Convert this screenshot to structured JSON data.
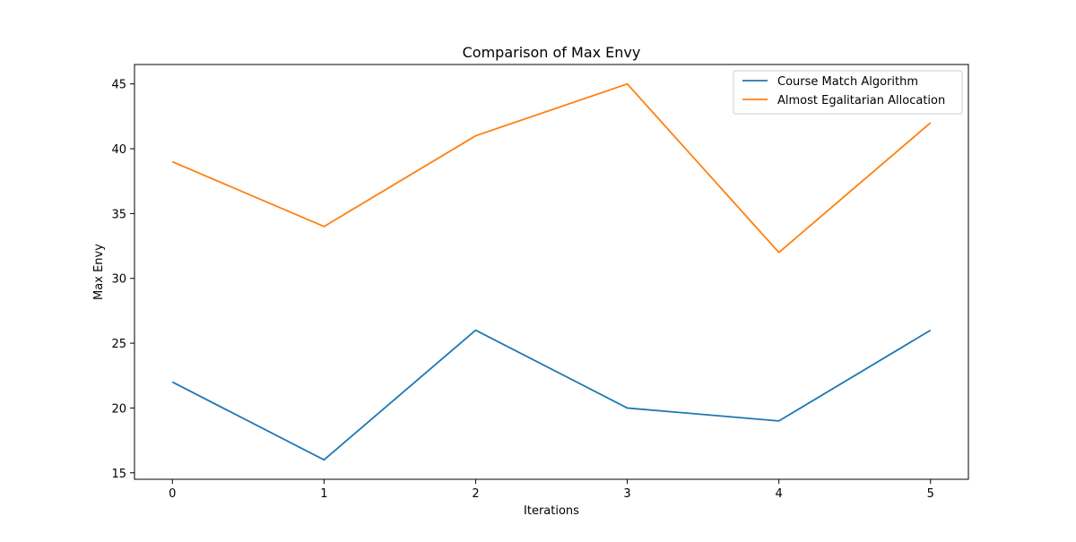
{
  "chart_data": {
    "type": "line",
    "title": "Comparison of Max Envy",
    "xlabel": "Iterations",
    "ylabel": "Max Envy",
    "x": [
      0,
      1,
      2,
      3,
      4,
      5
    ],
    "xlim": [
      -0.25,
      5.25
    ],
    "ylim": [
      14.5,
      46.5
    ],
    "xticks": [
      0,
      1,
      2,
      3,
      4,
      5
    ],
    "yticks": [
      15,
      20,
      25,
      30,
      35,
      40,
      45
    ],
    "grid": false,
    "legend_position": "top-right",
    "series": [
      {
        "name": "Course Match Algorithm",
        "color": "#1f77b4",
        "values": [
          22,
          16,
          26,
          20,
          19,
          26
        ]
      },
      {
        "name": "Almost Egalitarian Allocation",
        "color": "#ff7f0e",
        "values": [
          39,
          34,
          41,
          45,
          32,
          42
        ]
      }
    ]
  }
}
